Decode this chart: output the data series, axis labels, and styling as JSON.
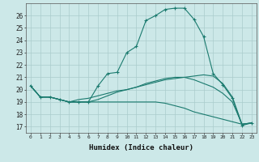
{
  "xlabel": "Humidex (Indice chaleur)",
  "ylabel": "",
  "bg_color": "#cce8e8",
  "grid_color": "#aacccc",
  "line_color": "#1a7a6e",
  "xlim": [
    -0.5,
    23.5
  ],
  "ylim": [
    16.5,
    27.0
  ],
  "yticks": [
    17,
    18,
    19,
    20,
    21,
    22,
    23,
    24,
    25,
    26
  ],
  "xticks": [
    0,
    1,
    2,
    3,
    4,
    5,
    6,
    7,
    8,
    9,
    10,
    11,
    12,
    13,
    14,
    15,
    16,
    17,
    18,
    19,
    20,
    21,
    22,
    23
  ],
  "lines": [
    {
      "x": [
        0,
        1,
        2,
        3,
        4,
        5,
        6,
        7,
        8,
        9,
        10,
        11,
        12,
        13,
        14,
        15,
        16,
        17,
        18,
        19,
        20,
        21,
        22,
        23
      ],
      "y": [
        20.3,
        19.4,
        19.4,
        19.2,
        19.0,
        19.0,
        19.0,
        20.3,
        21.3,
        21.4,
        23.0,
        23.5,
        25.6,
        26.0,
        26.5,
        26.6,
        26.6,
        25.7,
        24.3,
        21.3,
        20.4,
        19.3,
        17.1,
        17.3
      ],
      "marker": "+"
    },
    {
      "x": [
        0,
        1,
        2,
        3,
        4,
        5,
        6,
        7,
        8,
        9,
        10,
        11,
        12,
        13,
        14,
        15,
        16,
        17,
        18,
        19,
        20,
        21,
        22,
        23
      ],
      "y": [
        20.3,
        19.4,
        19.4,
        19.2,
        19.0,
        19.2,
        19.3,
        19.5,
        19.7,
        19.9,
        20.0,
        20.2,
        20.4,
        20.6,
        20.8,
        20.9,
        21.0,
        21.1,
        21.2,
        21.1,
        20.5,
        19.4,
        17.2,
        17.3
      ],
      "marker": null
    },
    {
      "x": [
        0,
        1,
        2,
        3,
        4,
        5,
        6,
        7,
        8,
        9,
        10,
        11,
        12,
        13,
        14,
        15,
        16,
        17,
        18,
        19,
        20,
        21,
        22,
        23
      ],
      "y": [
        20.3,
        19.4,
        19.4,
        19.2,
        19.0,
        19.0,
        19.0,
        19.2,
        19.5,
        19.8,
        20.0,
        20.2,
        20.5,
        20.7,
        20.9,
        21.0,
        21.0,
        20.8,
        20.5,
        20.2,
        19.7,
        19.0,
        17.2,
        17.3
      ],
      "marker": null
    },
    {
      "x": [
        0,
        1,
        2,
        3,
        4,
        5,
        6,
        7,
        8,
        9,
        10,
        11,
        12,
        13,
        14,
        15,
        16,
        17,
        18,
        19,
        20,
        21,
        22,
        23
      ],
      "y": [
        20.3,
        19.4,
        19.4,
        19.2,
        19.0,
        19.0,
        19.0,
        19.0,
        19.0,
        19.0,
        19.0,
        19.0,
        19.0,
        19.0,
        18.9,
        18.7,
        18.5,
        18.2,
        18.0,
        17.8,
        17.6,
        17.4,
        17.2,
        17.3
      ],
      "marker": null
    }
  ]
}
